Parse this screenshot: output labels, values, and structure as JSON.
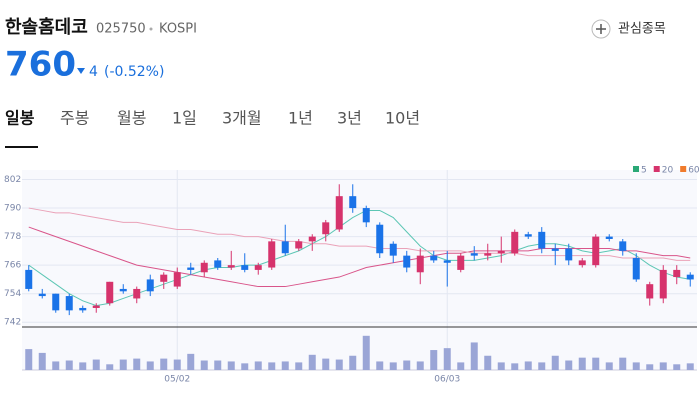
{
  "header": {
    "name": "한솔홈데코",
    "code": "025750",
    "market": "KOSPI",
    "price": 760,
    "change": 4,
    "change_pct": "(-0.52%)",
    "watch_button": "관심종목"
  },
  "tabs": [
    "일봉",
    "주봉",
    "월봉",
    "1일",
    "3개월",
    "1년",
    "3년",
    "10년"
  ],
  "chart_data": {
    "type": "candlestick",
    "categories": [
      null,
      null,
      null,
      null,
      null,
      null,
      null,
      null,
      null,
      null,
      null,
      "05/02",
      null,
      null,
      null,
      null,
      null,
      null,
      null,
      null,
      null,
      null,
      null,
      null,
      null,
      null,
      null,
      null,
      null,
      null,
      null,
      "06/03",
      null,
      null,
      null,
      null,
      null,
      null,
      null,
      null,
      null,
      null,
      null,
      null,
      null,
      null,
      null,
      null,
      null,
      null
    ],
    "open": [
      764,
      754,
      754,
      753,
      748,
      748,
      750,
      756,
      752,
      760,
      759,
      757,
      765,
      763,
      768,
      765,
      766,
      764,
      765,
      776,
      773,
      776,
      779,
      781,
      795,
      790,
      783,
      775,
      770,
      763,
      770,
      768,
      764,
      771,
      770,
      771,
      771,
      779,
      780,
      773,
      773,
      766,
      766,
      778,
      776,
      769,
      752,
      752,
      761,
      762
    ],
    "high": [
      766,
      756,
      754,
      754,
      749,
      750,
      759,
      758,
      757,
      762,
      763,
      765,
      767,
      768,
      769,
      772,
      771,
      767,
      777,
      783,
      777,
      779,
      785,
      800,
      800,
      791,
      784,
      776,
      772,
      773,
      772,
      772,
      771,
      774,
      775,
      778,
      781,
      780,
      782,
      775,
      775,
      769,
      779,
      779,
      777,
      771,
      759,
      766,
      766,
      763
    ],
    "low": [
      755,
      752,
      746,
      745,
      746,
      746,
      749,
      754,
      750,
      753,
      756,
      756,
      762,
      761,
      764,
      764,
      763,
      762,
      764,
      770,
      772,
      772,
      776,
      780,
      788,
      782,
      769,
      767,
      763,
      758,
      767,
      757,
      763,
      768,
      768,
      767,
      770,
      777,
      771,
      766,
      766,
      765,
      765,
      776,
      770,
      759,
      749,
      750,
      758,
      757
    ],
    "close": [
      756,
      753,
      747,
      747,
      747,
      749,
      759,
      755,
      756,
      755,
      762,
      763,
      764,
      767,
      765,
      766,
      764,
      766,
      776,
      771,
      776,
      778,
      784,
      795,
      790,
      784,
      771,
      770,
      765,
      770,
      768,
      767,
      770,
      770,
      771,
      772,
      780,
      778,
      773,
      772,
      768,
      768,
      778,
      777,
      772,
      760,
      758,
      764,
      764,
      760
    ],
    "volume": [
      22,
      18,
      9,
      10,
      8,
      11,
      6,
      11,
      12,
      9,
      12,
      11,
      17,
      10,
      10,
      9,
      7,
      9,
      8,
      9,
      8,
      16,
      12,
      11,
      15,
      36,
      9,
      8,
      10,
      9,
      21,
      23,
      8,
      29,
      15,
      8,
      7,
      9,
      8,
      15,
      10,
      13,
      13,
      8,
      13,
      8,
      6,
      8,
      6,
      7
    ],
    "moving_averages": [
      {
        "name": "5",
        "color": "#2aa876",
        "line_color": "#5cc6b4",
        "values": [
          766,
          762,
          758,
          754,
          751,
          749,
          750,
          752,
          754,
          756,
          758,
          760,
          762,
          764,
          765,
          765,
          766,
          766,
          768,
          770,
          772,
          775,
          778,
          782,
          786,
          789,
          789,
          786,
          780,
          774,
          770,
          768,
          768,
          768,
          769,
          770,
          772,
          774,
          775,
          775,
          774,
          772,
          771,
          772,
          773,
          770,
          766,
          763,
          761,
          760
        ]
      },
      {
        "name": "20",
        "color": "#d6336c",
        "line_color": "#d9558a",
        "values": [
          782,
          780,
          778,
          776,
          774,
          772,
          770,
          768,
          766,
          765,
          764,
          763,
          762,
          761,
          760,
          759,
          758,
          757,
          757,
          757,
          758,
          759,
          760,
          761,
          763,
          765,
          766,
          767,
          768,
          769,
          770,
          771,
          771,
          772,
          772,
          772,
          772,
          772,
          773,
          773,
          773,
          773,
          773,
          773,
          772,
          772,
          771,
          770,
          770,
          769
        ]
      },
      {
        "name": "60",
        "color": "#f07b2c",
        "line_color": "#eaa2b8",
        "values": [
          790,
          789,
          788,
          788,
          787,
          786,
          785,
          784,
          784,
          783,
          782,
          781,
          781,
          780,
          779,
          779,
          778,
          778,
          777,
          776,
          776,
          775,
          775,
          774,
          774,
          774,
          773,
          773,
          773,
          772,
          772,
          772,
          772,
          771,
          771,
          771,
          771,
          770,
          770,
          770,
          770,
          770,
          770,
          770,
          769,
          769,
          769,
          769,
          768,
          768
        ]
      }
    ],
    "up_color": "#d6336c",
    "down_color": "#1a73e8",
    "volume_color": "#9aa5d6",
    "ylim": [
      740,
      806
    ],
    "yticks": [
      742,
      754,
      766,
      778,
      790,
      802
    ],
    "volume_lim": [
      0,
      40
    ],
    "grid": true
  }
}
